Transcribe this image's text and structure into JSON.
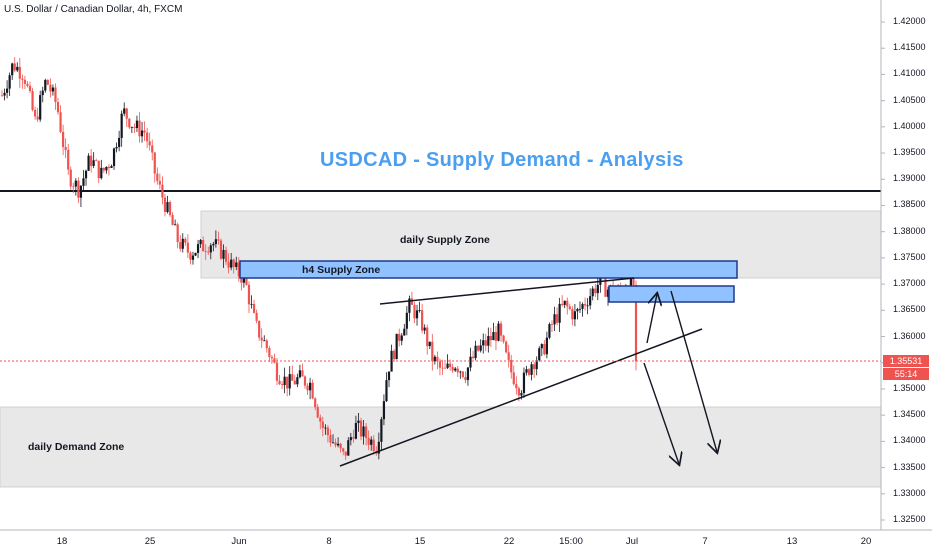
{
  "header": {
    "symbol": "U.S. Dollar / Canadian Dollar, 4h, FXCM"
  },
  "annotations": {
    "title": "USDCAD - Supply Demand - Analysis",
    "daily_supply_label": "daily Supply Zone",
    "h4_supply_label": "h4 Supply Zone",
    "daily_demand_label": "daily Demand Zone"
  },
  "price_axis": {
    "labels": [
      "1.42000",
      "1.41500",
      "1.41000",
      "1.40500",
      "1.40000",
      "1.39500",
      "1.39000",
      "1.38500",
      "1.38000",
      "1.37500",
      "1.37000",
      "1.36500",
      "1.36000",
      "1.35500",
      "1.35000",
      "1.34500",
      "1.34000",
      "1.33500",
      "1.33000",
      "1.32500"
    ],
    "current_price": "1.35531",
    "countdown": "55:14"
  },
  "time_axis": {
    "labels": [
      "18",
      "25",
      "Jun",
      "8",
      "15",
      "22",
      "15:00",
      "Jul",
      "7",
      "13",
      "20"
    ]
  },
  "colors": {
    "bull": "#131722",
    "bear": "#ef5350",
    "zone_fill": "#e8e8e8",
    "h4_fill": "#90c2ff",
    "h4_border": "#1e3a8a",
    "title": "#4a9ff0",
    "price_line": "#ef5350"
  },
  "chart_data": {
    "type": "candlestick",
    "symbol": "U.S. Dollar / Canadian Dollar",
    "timeframe": "4h",
    "broker": "FXCM",
    "ylim": [
      1.3225,
      1.4225
    ],
    "current_price": 1.35531,
    "anchors": [
      [
        0,
        1.406
      ],
      [
        10,
        1.412
      ],
      [
        20,
        1.41
      ],
      [
        30,
        1.401
      ],
      [
        40,
        1.409
      ],
      [
        50,
        1.404
      ],
      [
        60,
        1.391
      ],
      [
        70,
        1.388
      ],
      [
        80,
        1.394
      ],
      [
        90,
        1.391
      ],
      [
        100,
        1.394
      ],
      [
        110,
        1.403
      ],
      [
        120,
        1.4
      ],
      [
        130,
        1.399
      ],
      [
        140,
        1.39
      ],
      [
        150,
        1.384
      ],
      [
        160,
        1.378
      ],
      [
        170,
        1.376
      ],
      [
        180,
        1.377
      ],
      [
        190,
        1.378
      ],
      [
        200,
        1.376
      ],
      [
        210,
        1.373
      ],
      [
        220,
        1.371
      ],
      [
        230,
        1.362
      ],
      [
        240,
        1.358
      ],
      [
        250,
        1.353
      ],
      [
        260,
        1.351
      ],
      [
        270,
        1.352
      ],
      [
        280,
        1.351
      ],
      [
        290,
        1.343
      ],
      [
        300,
        1.34
      ],
      [
        310,
        1.337
      ],
      [
        320,
        1.343
      ],
      [
        330,
        1.341
      ],
      [
        340,
        1.339
      ],
      [
        350,
        1.354
      ],
      [
        360,
        1.36
      ],
      [
        370,
        1.366
      ],
      [
        380,
        1.363
      ],
      [
        390,
        1.356
      ],
      [
        400,
        1.353
      ],
      [
        410,
        1.355
      ],
      [
        420,
        1.353
      ],
      [
        430,
        1.357
      ],
      [
        440,
        1.359
      ],
      [
        450,
        1.361
      ],
      [
        460,
        1.354
      ],
      [
        470,
        1.35
      ],
      [
        480,
        1.355
      ],
      [
        490,
        1.357
      ],
      [
        500,
        1.363
      ],
      [
        510,
        1.366
      ],
      [
        520,
        1.364
      ],
      [
        530,
        1.367
      ],
      [
        540,
        1.37
      ],
      [
        550,
        1.369
      ],
      [
        560,
        1.368
      ],
      [
        570,
        1.371
      ],
      [
        575,
        1.369
      ]
    ],
    "horizontal_line": 1.3875,
    "zones": [
      {
        "name": "daily Supply Zone",
        "from": 1.3715,
        "to": 1.3835
      },
      {
        "name": "h4 Supply Zone",
        "from": 1.3715,
        "to": 1.3745
      },
      {
        "name": "h4 Supply Zone (small)",
        "from": 1.3668,
        "to": 1.3698
      },
      {
        "name": "daily Demand Zone",
        "from": 1.3315,
        "to": 1.3465
      }
    ],
    "trendlines": [
      {
        "from": [
          0,
          1.3355
        ],
        "to": [
          380,
          1.361
        ]
      },
      {
        "from": [
          0,
          1.3663
        ],
        "to": [
          250,
          1.3715
        ]
      }
    ]
  }
}
